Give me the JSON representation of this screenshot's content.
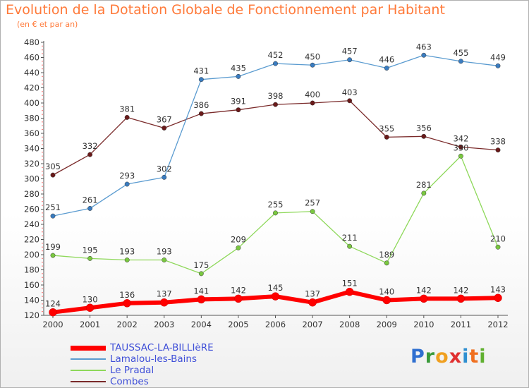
{
  "title": "Evolution de la Dotation Globale de Fonctionnement par Habitant",
  "subtitle": "(en € et par an)",
  "brand": {
    "letters": [
      "P",
      "r",
      "o",
      "x",
      "i",
      "t",
      "i"
    ],
    "colors": [
      "#2f6fd0",
      "#3a9a3a",
      "#f0a020",
      "#e03030",
      "#2f8fd0",
      "#f07020",
      "#60b030"
    ]
  },
  "chart_data": {
    "type": "line",
    "title": "Evolution de la Dotation Globale de Fonctionnement par Habitant",
    "subtitle": "(en € et par an)",
    "x": [
      2000,
      2001,
      2002,
      2003,
      2004,
      2005,
      2006,
      2007,
      2008,
      2009,
      2010,
      2011,
      2012
    ],
    "ylim": [
      120,
      480
    ],
    "yticks": [
      120,
      140,
      160,
      180,
      200,
      220,
      240,
      260,
      280,
      300,
      320,
      340,
      360,
      380,
      400,
      420,
      440,
      460,
      480
    ],
    "grid": false,
    "legend_position": "bottom-left",
    "series": [
      {
        "name": "TAUSSAC-LA-BILLIèRE",
        "color": "#ff0000",
        "marker": "#ff0000",
        "values": [
          124,
          130,
          136,
          137,
          141,
          142,
          145,
          137,
          151,
          140,
          142,
          142,
          143
        ]
      },
      {
        "name": "Lamalou-les-Bains",
        "color": "#5a9bd0",
        "marker": "#3a7cc0",
        "values": [
          251,
          261,
          293,
          302,
          431,
          435,
          452,
          450,
          457,
          446,
          463,
          455,
          449
        ]
      },
      {
        "name": "Le Pradal",
        "color": "#8ed85a",
        "marker": "#7ac840",
        "values": [
          199,
          195,
          193,
          193,
          175,
          209,
          255,
          257,
          211,
          189,
          281,
          330,
          210
        ]
      },
      {
        "name": "Combes",
        "color": "#7a2a2a",
        "marker": "#6a1a1a",
        "values": [
          305,
          332,
          381,
          367,
          386,
          391,
          398,
          400,
          403,
          355,
          356,
          342,
          338
        ]
      }
    ]
  }
}
